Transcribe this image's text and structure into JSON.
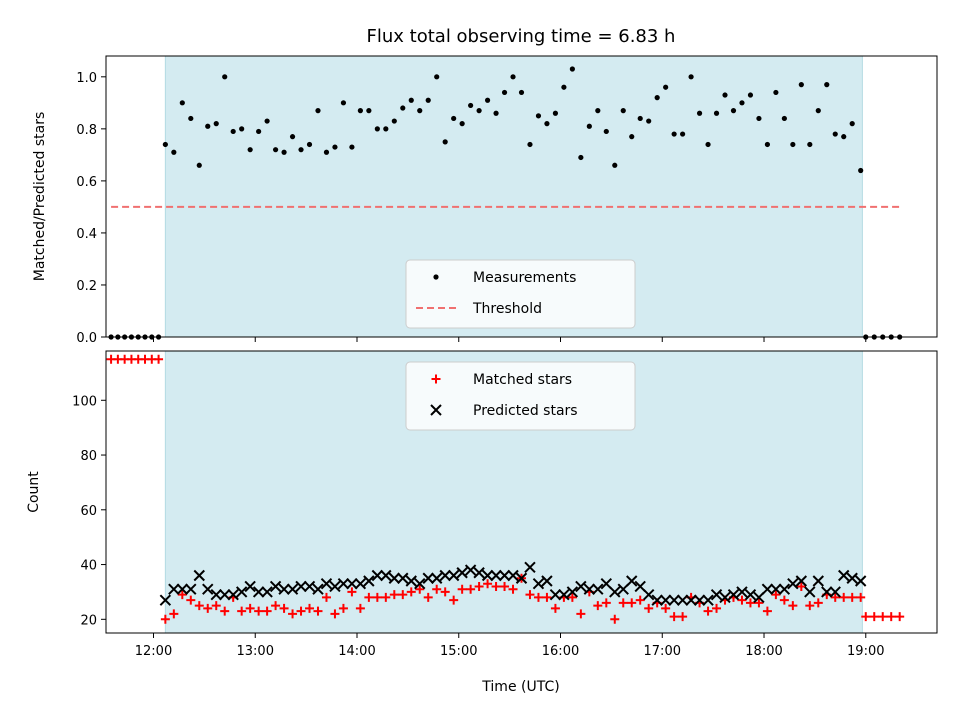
{
  "chart_data": {
    "type": "scatter",
    "title": "Flux total observing time = 6.83 h",
    "xlabel": "Time (UTC)",
    "x_unit": "hours UTC",
    "xlim": [
      "11:32",
      "19:42"
    ],
    "x_ticks": [
      "12:00",
      "13:00",
      "14:00",
      "15:00",
      "16:00",
      "17:00",
      "18:00",
      "19:00"
    ],
    "observing_window": [
      "12:07",
      "18:58"
    ],
    "colors": {
      "window": "#d4ebf1",
      "window_edge": "#b4dbe3",
      "measurements": "#000000",
      "threshold": "#f07070",
      "matched": "#ff0000",
      "predicted": "#000000"
    },
    "panels": [
      {
        "id": "ratio",
        "ylabel": "Matched/Predicted stars",
        "ylim": [
          0,
          1.08
        ],
        "y_ticks": [
          "0.0",
          "0.2",
          "0.4",
          "0.6",
          "0.8",
          "1.0"
        ],
        "legend": {
          "position": "lower-center",
          "entries": [
            "Measurements",
            "Threshold"
          ]
        },
        "threshold": {
          "name": "Threshold",
          "value": 0.5,
          "x_range": [
            "11:35",
            "19:20"
          ]
        },
        "series": [
          {
            "name": "Measurements",
            "x": [
              "11:35",
              "11:39",
              "11:43",
              "11:47",
              "11:51",
              "11:55",
              "11:59",
              "12:03",
              "12:07",
              "12:12",
              "12:17",
              "12:22",
              "12:27",
              "12:32",
              "12:37",
              "12:42",
              "12:47",
              "12:52",
              "12:57",
              "13:02",
              "13:07",
              "13:12",
              "13:17",
              "13:22",
              "13:27",
              "13:32",
              "13:37",
              "13:42",
              "13:47",
              "13:52",
              "13:57",
              "14:02",
              "14:07",
              "14:12",
              "14:17",
              "14:22",
              "14:27",
              "14:32",
              "14:37",
              "14:42",
              "14:47",
              "14:52",
              "14:57",
              "15:02",
              "15:07",
              "15:12",
              "15:17",
              "15:22",
              "15:27",
              "15:32",
              "15:37",
              "15:42",
              "15:47",
              "15:52",
              "15:57",
              "16:02",
              "16:07",
              "16:12",
              "16:17",
              "16:22",
              "16:27",
              "16:32",
              "16:37",
              "16:42",
              "16:47",
              "16:52",
              "16:57",
              "17:02",
              "17:07",
              "17:12",
              "17:17",
              "17:22",
              "17:27",
              "17:32",
              "17:37",
              "17:42",
              "17:47",
              "17:52",
              "17:57",
              "18:02",
              "18:07",
              "18:12",
              "18:17",
              "18:22",
              "18:27",
              "18:32",
              "18:37",
              "18:42",
              "18:47",
              "18:52",
              "18:57",
              "19:00",
              "19:05",
              "19:10",
              "19:15",
              "19:20"
            ],
            "y": [
              0,
              0,
              0,
              0,
              0,
              0,
              0,
              0,
              0.74,
              0.71,
              0.9,
              0.84,
              0.66,
              0.81,
              0.82,
              1.0,
              0.79,
              0.8,
              0.72,
              0.79,
              0.83,
              0.72,
              0.71,
              0.77,
              0.72,
              0.74,
              0.87,
              0.71,
              0.73,
              0.9,
              0.73,
              0.87,
              0.87,
              0.8,
              0.8,
              0.83,
              0.88,
              0.91,
              0.87,
              0.91,
              1.0,
              0.75,
              0.84,
              0.82,
              0.89,
              0.87,
              0.91,
              0.86,
              0.94,
              1.0,
              0.94,
              0.74,
              0.85,
              0.82,
              0.86,
              0.96,
              1.03,
              0.69,
              0.81,
              0.87,
              0.79,
              0.66,
              0.87,
              0.77,
              0.84,
              0.83,
              0.92,
              0.96,
              0.78,
              0.78,
              1.0,
              0.86,
              0.74,
              0.86,
              0.93,
              0.87,
              0.9,
              0.93,
              0.84,
              0.74,
              0.94,
              0.84,
              0.74,
              0.97,
              0.74,
              0.87,
              0.97,
              0.78,
              0.77,
              0.82,
              0.64,
              0,
              0,
              0,
              0,
              0
            ]
          }
        ]
      },
      {
        "id": "counts",
        "ylabel": "Count",
        "ylim": [
          15,
          118
        ],
        "y_ticks": [
          "20",
          "40",
          "60",
          "80",
          "100"
        ],
        "legend": {
          "position": "upper-center",
          "entries": [
            "Matched stars",
            "Predicted stars"
          ]
        },
        "series": [
          {
            "name": "Matched stars",
            "marker": "plus",
            "x": [
              "11:35",
              "11:39",
              "11:43",
              "11:47",
              "11:51",
              "11:55",
              "11:59",
              "12:03",
              "12:07",
              "12:12",
              "12:17",
              "12:22",
              "12:27",
              "12:32",
              "12:37",
              "12:42",
              "12:47",
              "12:52",
              "12:57",
              "13:02",
              "13:07",
              "13:12",
              "13:17",
              "13:22",
              "13:27",
              "13:32",
              "13:37",
              "13:42",
              "13:47",
              "13:52",
              "13:57",
              "14:02",
              "14:07",
              "14:12",
              "14:17",
              "14:22",
              "14:27",
              "14:32",
              "14:37",
              "14:42",
              "14:47",
              "14:52",
              "14:57",
              "15:02",
              "15:07",
              "15:12",
              "15:17",
              "15:22",
              "15:27",
              "15:32",
              "15:37",
              "15:42",
              "15:47",
              "15:52",
              "15:57",
              "16:02",
              "16:07",
              "16:12",
              "16:17",
              "16:22",
              "16:27",
              "16:32",
              "16:37",
              "16:42",
              "16:47",
              "16:52",
              "16:57",
              "17:02",
              "17:07",
              "17:12",
              "17:17",
              "17:22",
              "17:27",
              "17:32",
              "17:37",
              "17:42",
              "17:47",
              "17:52",
              "17:57",
              "18:02",
              "18:07",
              "18:12",
              "18:17",
              "18:22",
              "18:27",
              "18:32",
              "18:37",
              "18:42",
              "18:47",
              "18:52",
              "18:57",
              "19:00",
              "19:05",
              "19:10",
              "19:15",
              "19:20"
            ],
            "y": [
              115,
              115,
              115,
              115,
              115,
              115,
              115,
              115,
              20,
              22,
              29,
              27,
              25,
              24,
              25,
              23,
              28,
              23,
              24,
              23,
              23,
              25,
              24,
              22,
              23,
              24,
              23,
              28,
              22,
              24,
              30,
              24,
              28,
              28,
              28,
              29,
              29,
              30,
              31,
              28,
              31,
              30,
              27,
              31,
              31,
              32,
              33,
              32,
              32,
              31,
              35,
              29,
              28,
              28,
              24,
              28,
              28,
              22,
              30,
              25,
              26,
              20,
              26,
              26,
              27,
              24,
              26,
              24,
              21,
              21,
              28,
              26,
              23,
              24,
              27,
              28,
              27,
              26,
              26,
              23,
              29,
              27,
              25,
              32,
              25,
              26,
              29,
              28,
              28,
              28,
              28,
              21,
              21,
              21,
              21,
              21
            ]
          },
          {
            "name": "Predicted stars",
            "marker": "x",
            "x": [
              "12:07",
              "12:12",
              "12:17",
              "12:22",
              "12:27",
              "12:32",
              "12:37",
              "12:42",
              "12:47",
              "12:52",
              "12:57",
              "13:02",
              "13:07",
              "13:12",
              "13:17",
              "13:22",
              "13:27",
              "13:32",
              "13:37",
              "13:42",
              "13:47",
              "13:52",
              "13:57",
              "14:02",
              "14:07",
              "14:12",
              "14:17",
              "14:22",
              "14:27",
              "14:32",
              "14:37",
              "14:42",
              "14:47",
              "14:52",
              "14:57",
              "15:02",
              "15:07",
              "15:12",
              "15:17",
              "15:22",
              "15:27",
              "15:32",
              "15:37",
              "15:42",
              "15:47",
              "15:52",
              "15:57",
              "16:02",
              "16:07",
              "16:12",
              "16:17",
              "16:22",
              "16:27",
              "16:32",
              "16:37",
              "16:42",
              "16:47",
              "16:52",
              "16:57",
              "17:02",
              "17:07",
              "17:12",
              "17:17",
              "17:22",
              "17:27",
              "17:32",
              "17:37",
              "17:42",
              "17:47",
              "17:52",
              "17:57",
              "18:02",
              "18:07",
              "18:12",
              "18:17",
              "18:22",
              "18:27",
              "18:32",
              "18:37",
              "18:42",
              "18:47",
              "18:52",
              "18:57"
            ],
            "y": [
              27,
              31,
              31,
              31,
              36,
              31,
              29,
              29,
              29,
              30,
              32,
              30,
              30,
              32,
              31,
              31,
              32,
              32,
              31,
              33,
              32,
              33,
              33,
              33,
              34,
              36,
              36,
              35,
              35,
              34,
              33,
              35,
              35,
              36,
              36,
              37,
              38,
              37,
              36,
              36,
              36,
              36,
              35,
              39,
              33,
              34,
              29,
              29,
              30,
              32,
              31,
              31,
              33,
              30,
              31,
              34,
              32,
              29,
              27,
              27,
              27,
              27,
              27,
              27,
              27,
              29,
              28,
              29,
              30,
              29,
              28,
              31,
              31,
              31,
              33,
              34,
              30,
              34,
              30,
              30,
              36,
              35,
              34
            ]
          }
        ]
      }
    ]
  }
}
